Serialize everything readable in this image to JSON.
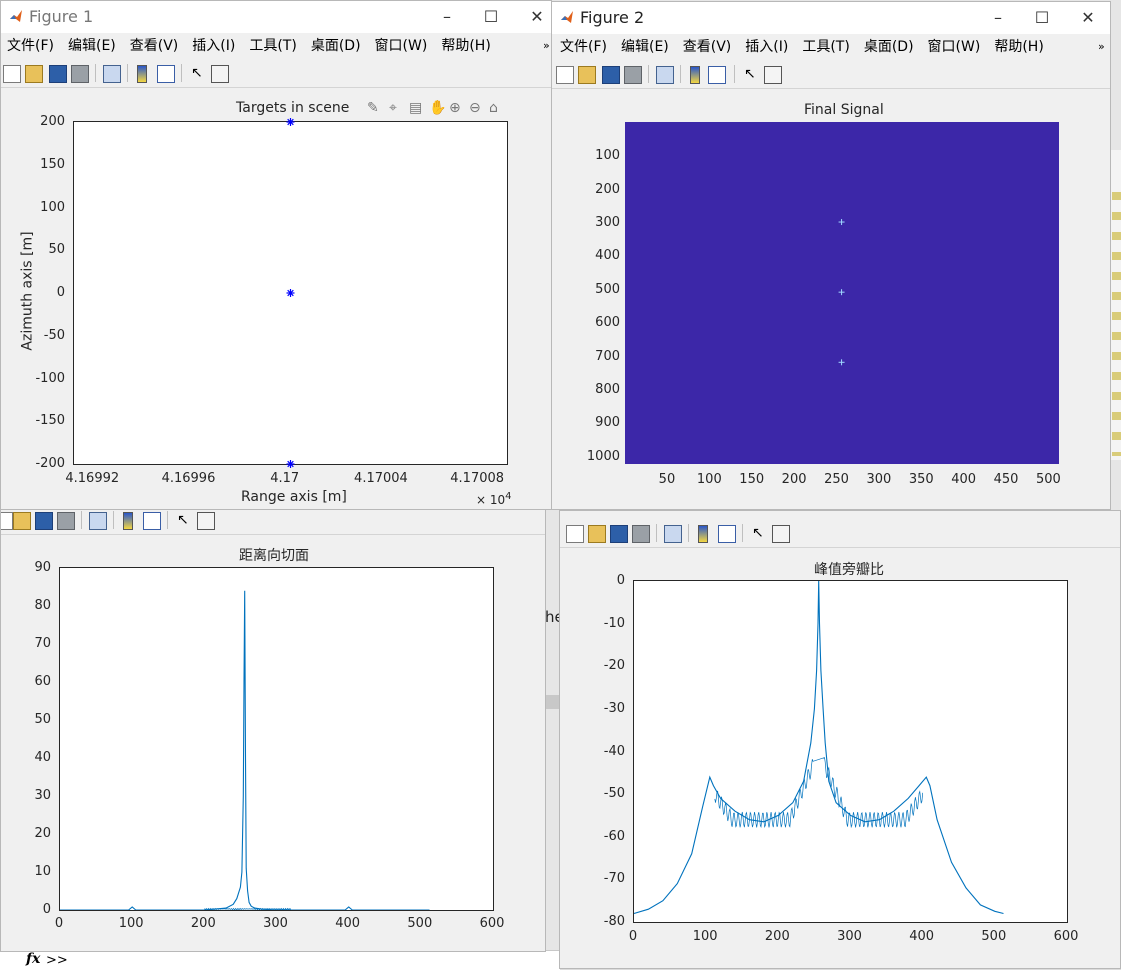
{
  "colors": {
    "accent": "#0072bd",
    "image_bg": "#3c27a8",
    "marker": "#0000ff"
  },
  "figure1": {
    "title": "Figure 1",
    "menu": [
      "文件(F)",
      "编辑(E)",
      "查看(V)",
      "插入(I)",
      "工具(T)",
      "桌面(D)",
      "窗口(W)",
      "帮助(H)"
    ],
    "overflow": "»",
    "axes_title": "Targets in scene",
    "xlabel": "Range axis [m]",
    "ylabel": "Azimuth axis [m]",
    "x_ticks": [
      "4.16992",
      "4.16996",
      "4.17",
      "4.17004",
      "4.17008"
    ],
    "y_ticks": [
      "200",
      "150",
      "100",
      "50",
      "0",
      "-50",
      "-100",
      "-150",
      "-200"
    ],
    "exponent_base": "× 10",
    "exponent_power": "4",
    "axes_toolbar_icons": [
      "brush-icon",
      "datatip-icon",
      "export-icon",
      "pan-icon",
      "zoom-in-icon",
      "zoom-out-icon",
      "home-icon"
    ],
    "chart_data": {
      "type": "scatter",
      "x": [
        41700,
        41700,
        41700
      ],
      "y": [
        200,
        0,
        -200
      ],
      "xlim": [
        41699.1,
        41700.9
      ],
      "ylim": [
        -200,
        200
      ]
    }
  },
  "figure2": {
    "title": "Figure 2",
    "menu": [
      "文件(F)",
      "编辑(E)",
      "查看(V)",
      "插入(I)",
      "工具(T)",
      "桌面(D)",
      "窗口(W)",
      "帮助(H)"
    ],
    "overflow": "»",
    "axes_title": "Final Signal",
    "x_ticks": [
      "50",
      "100",
      "150",
      "200",
      "250",
      "300",
      "350",
      "400",
      "450",
      "500"
    ],
    "y_ticks": [
      "100",
      "200",
      "300",
      "400",
      "500",
      "600",
      "700",
      "800",
      "900",
      "1000"
    ],
    "chart_data": {
      "type": "heatmap",
      "xlim": [
        0.5,
        512.5
      ],
      "ylim": [
        0.5,
        1024.5
      ],
      "points": [
        {
          "x": 256,
          "y": 300
        },
        {
          "x": 256,
          "y": 510
        },
        {
          "x": 256,
          "y": 720
        }
      ]
    }
  },
  "figure3": {
    "axes_title": "距离向切面",
    "x_ticks": [
      "0",
      "100",
      "200",
      "300",
      "400",
      "500",
      "600"
    ],
    "y_ticks": [
      "90",
      "80",
      "70",
      "60",
      "50",
      "40",
      "30",
      "20",
      "10",
      "0"
    ],
    "chart_data": {
      "type": "line",
      "xlim": [
        0,
        600
      ],
      "ylim": [
        0,
        90
      ],
      "x": [
        0,
        95,
        100,
        105,
        200,
        230,
        240,
        245,
        250,
        252,
        254,
        255,
        256,
        257,
        258,
        259,
        260,
        262,
        265,
        270,
        280,
        300,
        395,
        400,
        405,
        512
      ],
      "y": [
        0,
        0,
        0.8,
        0,
        0,
        0.5,
        1.5,
        3,
        6,
        10,
        30,
        60,
        84,
        40,
        11,
        8,
        5,
        2,
        1,
        0.5,
        0.2,
        0,
        0,
        0.8,
        0,
        0
      ]
    }
  },
  "figure4": {
    "axes_title": "峰值旁瓣比",
    "x_ticks": [
      "0",
      "100",
      "200",
      "300",
      "400",
      "500",
      "600"
    ],
    "y_ticks": [
      "0",
      "-10",
      "-20",
      "-30",
      "-40",
      "-50",
      "-60",
      "-70",
      "-80"
    ],
    "chart_data": {
      "type": "line",
      "xlim": [
        0,
        600
      ],
      "ylim": [
        -80,
        0
      ],
      "x": [
        0,
        20,
        40,
        60,
        80,
        95,
        105,
        110,
        120,
        140,
        160,
        180,
        200,
        220,
        235,
        245,
        250,
        253,
        255,
        256,
        257,
        259,
        262,
        265,
        270,
        280,
        300,
        320,
        340,
        360,
        380,
        395,
        405,
        410,
        420,
        440,
        460,
        480,
        500,
        512
      ],
      "y": [
        -78,
        -77,
        -75,
        -71,
        -64,
        -53,
        -46,
        -48,
        -51,
        -54,
        -56,
        -56.5,
        -55,
        -52,
        -47,
        -38,
        -30,
        -21,
        -10,
        0,
        -10,
        -21,
        -30,
        -38,
        -47,
        -52,
        -55,
        -56.5,
        -56,
        -54,
        -51,
        -48,
        -46,
        -48,
        -56,
        -66,
        -72,
        -76,
        -77.5,
        -78
      ]
    }
  },
  "command_window": {
    "fx_label": "fx",
    "prompt": ">>",
    "partial_text": "he"
  }
}
